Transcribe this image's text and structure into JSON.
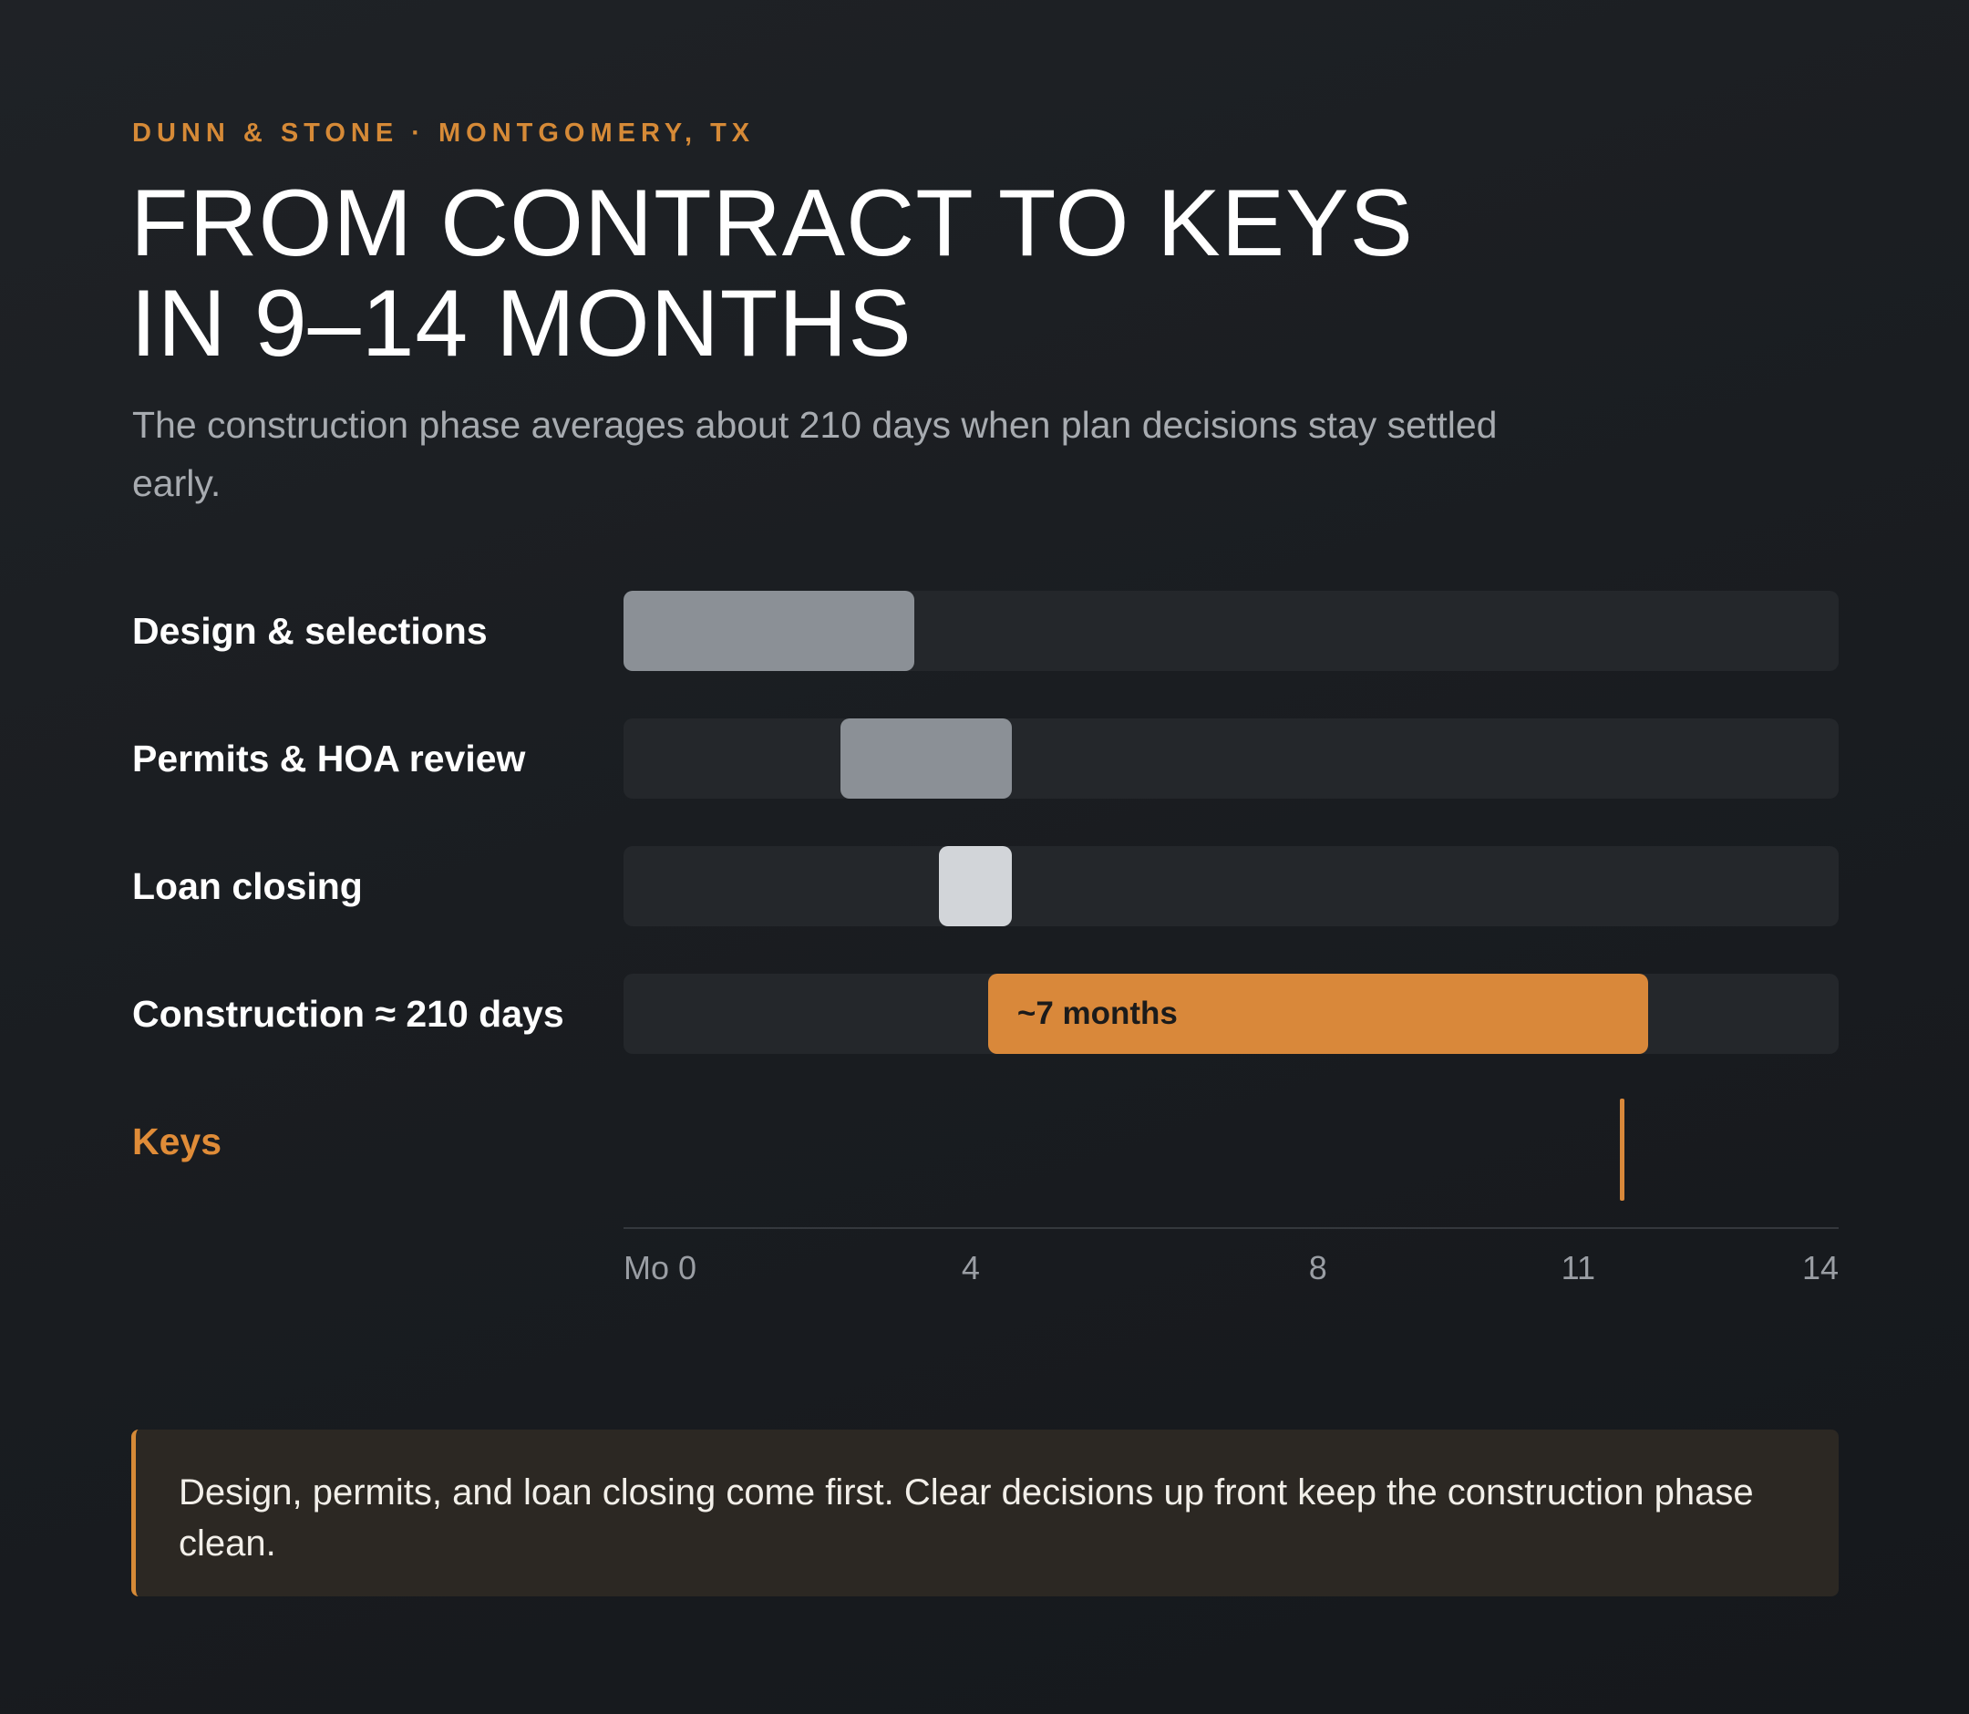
{
  "header": {
    "eyebrow": "DUNN & STONE · MONTGOMERY, TX",
    "title_line1": "FROM CONTRACT TO KEYS",
    "title_line2": "IN 9–14 MONTHS",
    "subtitle": "The construction phase averages about 210 days when plan decisions stay settled early."
  },
  "colors": {
    "accent": "#d68a37",
    "track": "#24272b",
    "bar_design": "#8b9096",
    "bar_permits": "#8b9096",
    "bar_loan": "#d2d5d9",
    "bar_construction": "#d9883a"
  },
  "chart_data": {
    "type": "bar",
    "orientation": "horizontal-range",
    "x_unit": "months",
    "xlim": [
      0,
      14
    ],
    "x_ticks": [
      {
        "value": 0,
        "label": "Mo 0"
      },
      {
        "value": 4,
        "label": "4"
      },
      {
        "value": 8,
        "label": "8"
      },
      {
        "value": 11,
        "label": "11"
      },
      {
        "value": 14,
        "label": "14"
      }
    ],
    "tasks": [
      {
        "label": "Design & selections",
        "start": 0,
        "end": 3.35,
        "color_key": "bar_design"
      },
      {
        "label": "Permits & HOA review",
        "start": 2.5,
        "end": 4.47,
        "color_key": "bar_permits"
      },
      {
        "label": "Loan closing",
        "start": 3.63,
        "end": 4.47,
        "color_key": "bar_loan"
      },
      {
        "label": "Construction ≈ 210 days",
        "start": 4.2,
        "end": 11.8,
        "color_key": "bar_construction",
        "bar_label": "~7 months"
      }
    ],
    "milestone": {
      "label": "Keys",
      "value": 11.5
    }
  },
  "callout": {
    "text": "Design, permits, and loan closing come first. Clear decisions up front keep the construction phase clean."
  }
}
